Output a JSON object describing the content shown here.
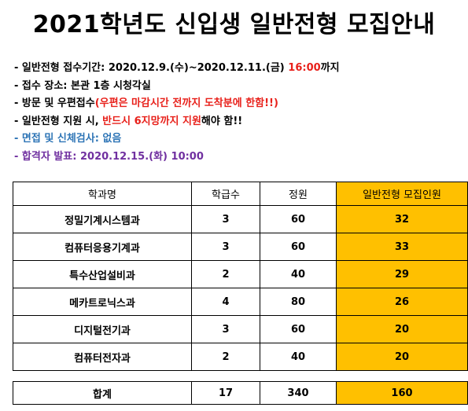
{
  "title": "2021학년도 신입생 일반전형 모집안내",
  "notes": {
    "period_prefix": "- 일반전형 접수기간: 2020.12.9.(수)~2020.12.11.(금) ",
    "period_time": "16:00",
    "period_suffix": "까지",
    "place": "- 접수 장소: 본관 1층 시청각실",
    "visit_prefix": "- 방문 및 우편접수",
    "visit_red": "(우편은 마감시간 전까지 도착분에 한함!!)",
    "apply_prefix": "- 일반전형 지원 시, ",
    "apply_red": "반드시 6지망까지 지원",
    "apply_suffix": "해야 함!!",
    "interview": "- 면접 및 신체검사: 없음",
    "announce": "- 합격자 발표: 2020.12.15.(화) 10:00"
  },
  "table": {
    "headers": [
      "학과명",
      "학급수",
      "정원",
      "일반전형 모집인원"
    ],
    "rows": [
      {
        "dept": "정밀기계시스템과",
        "classes": "3",
        "quota": "60",
        "recruit": "32"
      },
      {
        "dept": "컴퓨터응용기계과",
        "classes": "3",
        "quota": "60",
        "recruit": "33"
      },
      {
        "dept": "특수산업설비과",
        "classes": "2",
        "quota": "40",
        "recruit": "29"
      },
      {
        "dept": "메카트로닉스과",
        "classes": "4",
        "quota": "80",
        "recruit": "26"
      },
      {
        "dept": "디지털전기과",
        "classes": "3",
        "quota": "60",
        "recruit": "20"
      },
      {
        "dept": "컴퓨터전자과",
        "classes": "2",
        "quota": "40",
        "recruit": "20"
      }
    ],
    "total": {
      "label": "합계",
      "classes": "17",
      "quota": "340",
      "recruit": "160"
    }
  },
  "colors": {
    "highlight": "#ffc000",
    "red": "#e8201a",
    "blue": "#2e75b6",
    "purple": "#7030a0"
  }
}
